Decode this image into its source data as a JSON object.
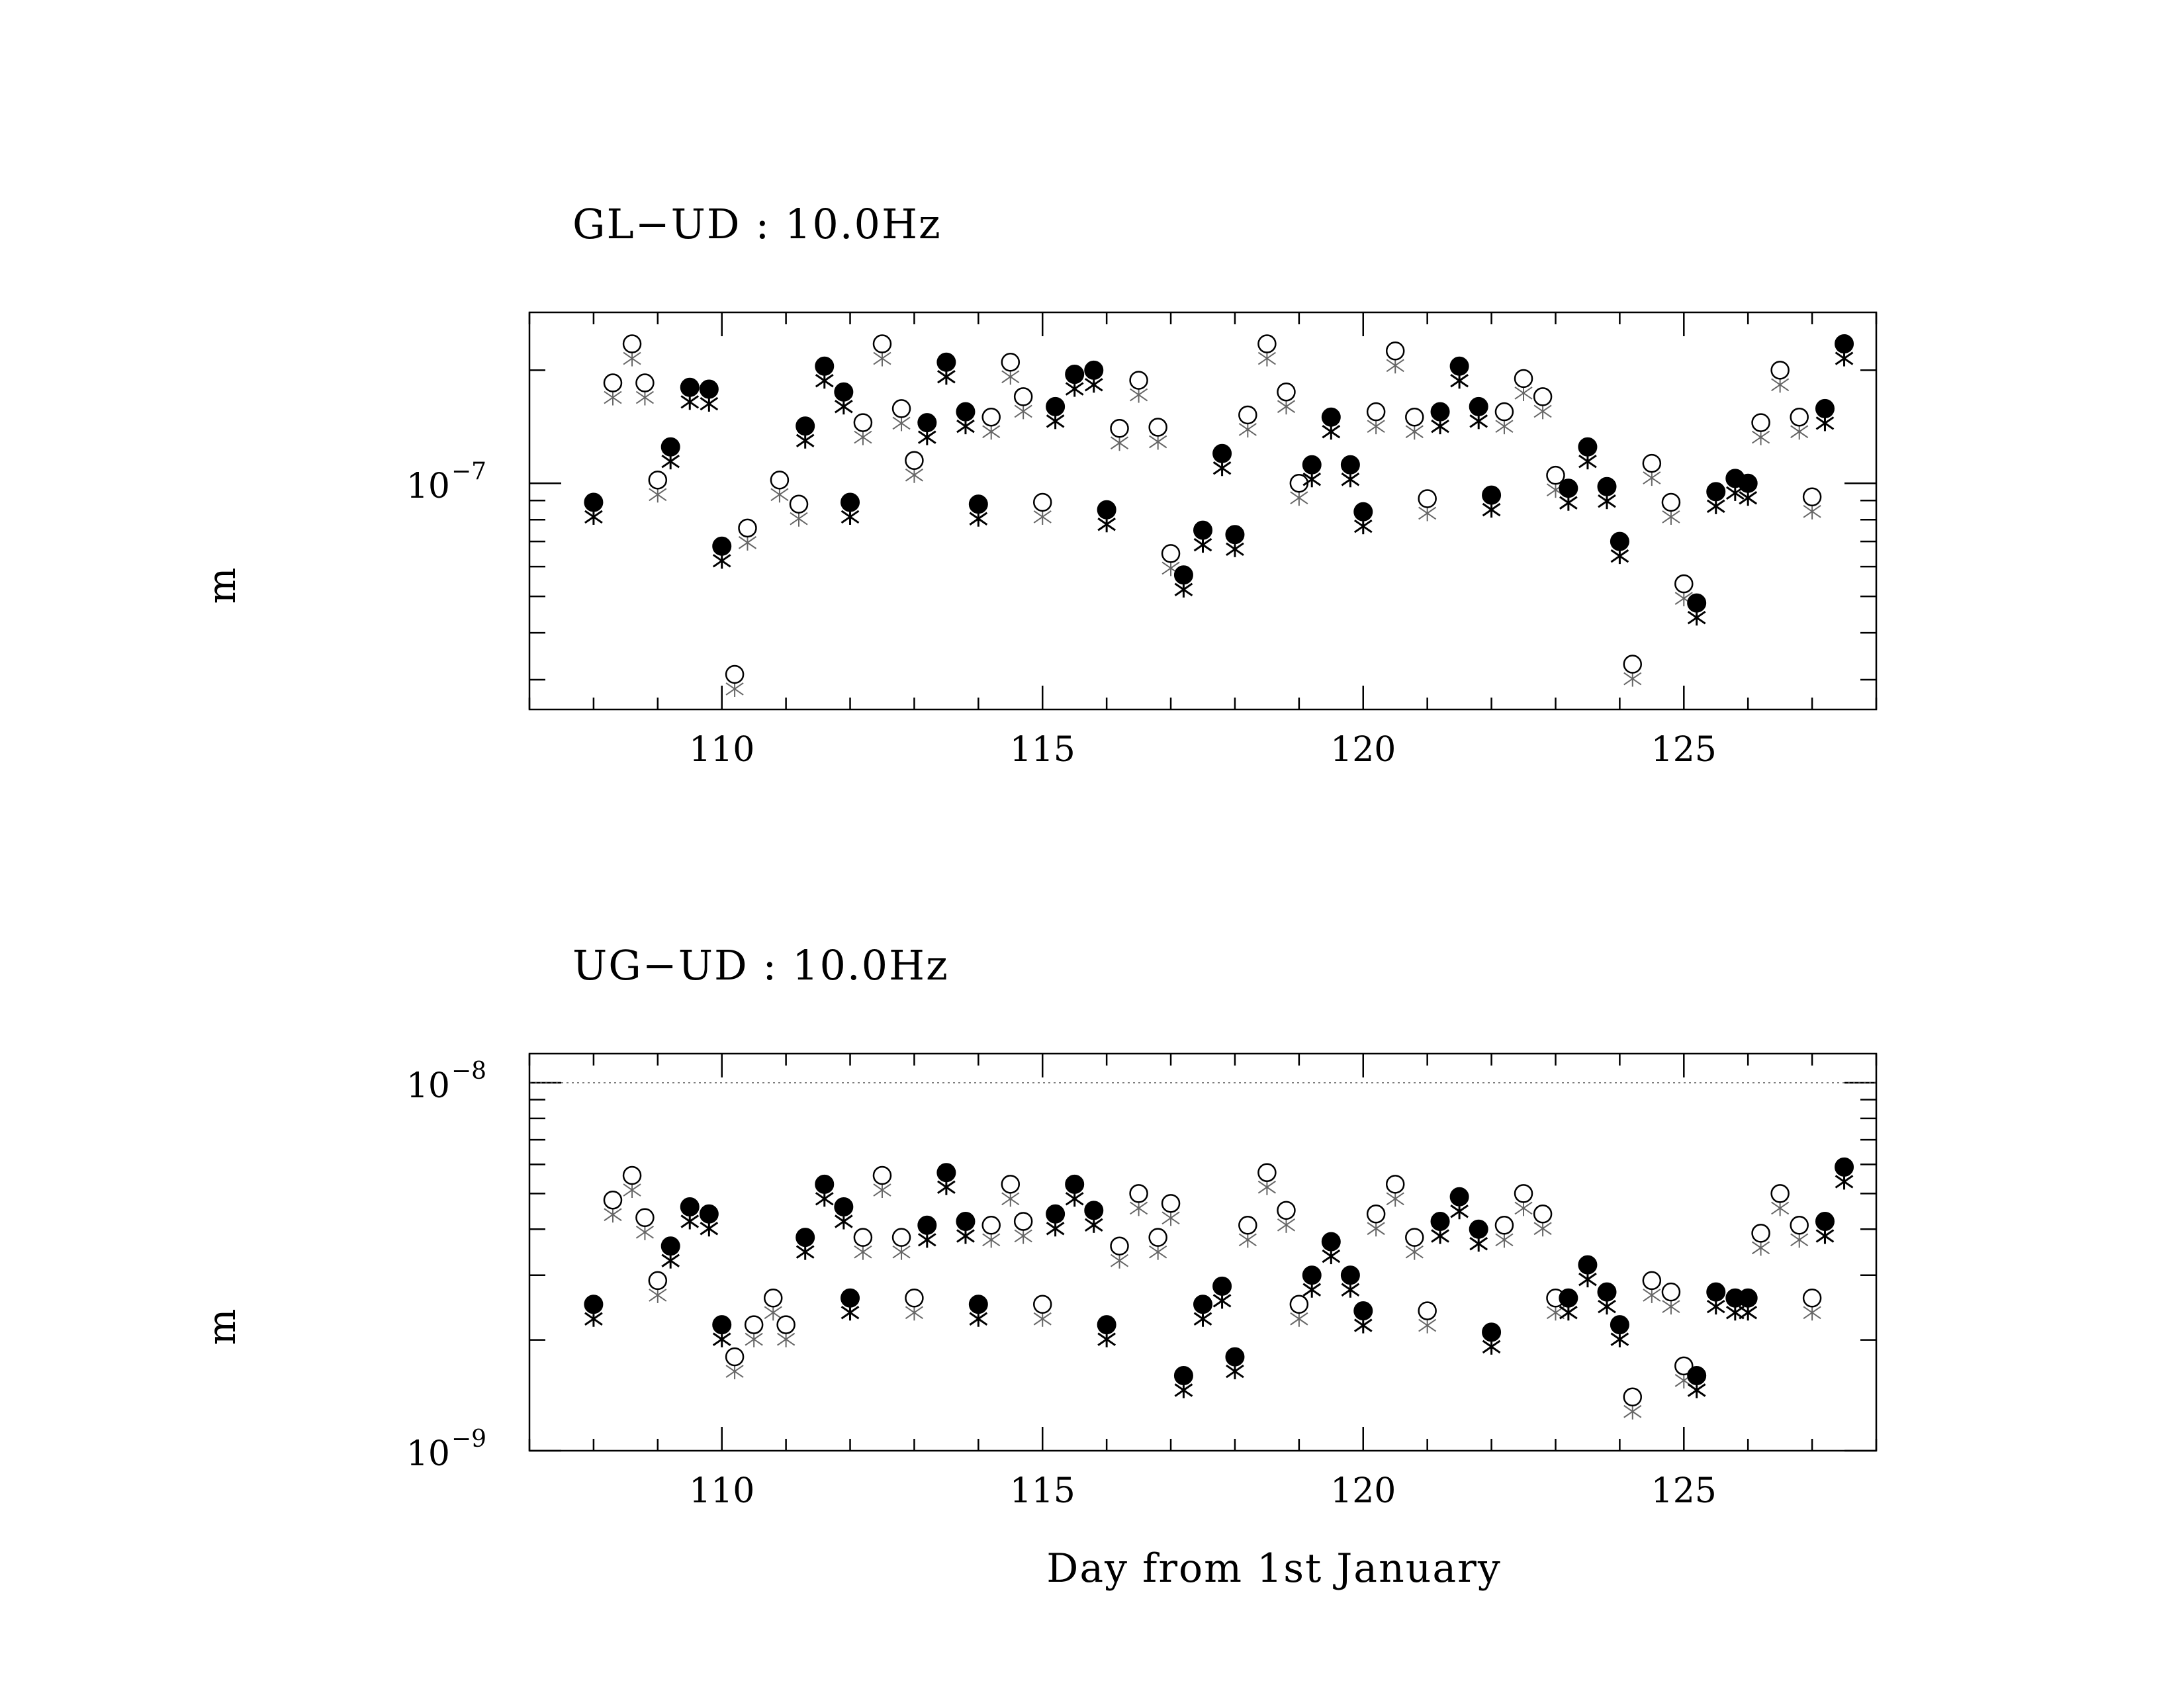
{
  "chart_data": [
    {
      "type": "scatter",
      "title": "GL−UD : 10.0Hz",
      "ylabel": "m",
      "xlabel": "",
      "xlim": [
        107,
        128
      ],
      "ylim": [
        2.5e-08,
        2.85e-07
      ],
      "yscale": "log",
      "xticks": [
        110,
        115,
        120,
        125
      ],
      "yticks": [
        {
          "base": "10",
          "exp": "−7",
          "value": 1e-07
        }
      ],
      "grid": false,
      "series": [
        {
          "marker": "open-circle",
          "points": [
            [
              108.6,
              2.35e-07
            ],
            [
              108.3,
              1.85e-07
            ],
            [
              108.8,
              1.85e-07
            ],
            [
              109.0,
              1.02e-07
            ],
            [
              110.2,
              3.1e-08
            ],
            [
              110.9,
              1.02e-07
            ],
            [
              111.2,
              8.8e-08
            ],
            [
              110.4,
              7.6e-08
            ],
            [
              112.2,
              1.45e-07
            ],
            [
              112.5,
              2.35e-07
            ],
            [
              112.8,
              1.58e-07
            ],
            [
              113.0,
              1.15e-07
            ],
            [
              114.2,
              1.5e-07
            ],
            [
              114.5,
              2.1e-07
            ],
            [
              114.7,
              1.7e-07
            ],
            [
              115.0,
              8.9e-08
            ],
            [
              116.2,
              1.4e-07
            ],
            [
              116.5,
              1.88e-07
            ],
            [
              116.8,
              1.41e-07
            ],
            [
              117.0,
              6.5e-08
            ],
            [
              118.2,
              1.52e-07
            ],
            [
              118.5,
              2.35e-07
            ],
            [
              118.8,
              1.75e-07
            ],
            [
              119.0,
              1e-07
            ],
            [
              120.2,
              1.55e-07
            ],
            [
              120.5,
              2.25e-07
            ],
            [
              120.8,
              1.5e-07
            ],
            [
              121.0,
              9.1e-08
            ],
            [
              122.2,
              1.55e-07
            ],
            [
              122.5,
              1.9e-07
            ],
            [
              122.8,
              1.7e-07
            ],
            [
              123.0,
              1.05e-07
            ],
            [
              124.2,
              3.3e-08
            ],
            [
              124.5,
              1.13e-07
            ],
            [
              124.8,
              8.9e-08
            ],
            [
              125.0,
              5.4e-08
            ],
            [
              126.2,
              1.45e-07
            ],
            [
              126.5,
              2e-07
            ],
            [
              126.8,
              1.5e-07
            ],
            [
              127.0,
              9.2e-08
            ]
          ]
        },
        {
          "marker": "filled-circle",
          "points": [
            [
              108.0,
              8.9e-08
            ],
            [
              109.2,
              1.25e-07
            ],
            [
              109.5,
              1.8e-07
            ],
            [
              109.8,
              1.78e-07
            ],
            [
              110.0,
              6.8e-08
            ],
            [
              111.3,
              1.42e-07
            ],
            [
              111.6,
              2.05e-07
            ],
            [
              111.9,
              1.75e-07
            ],
            [
              112.0,
              8.9e-08
            ],
            [
              113.2,
              1.45e-07
            ],
            [
              113.5,
              2.1e-07
            ],
            [
              113.8,
              1.55e-07
            ],
            [
              114.0,
              8.8e-08
            ],
            [
              115.2,
              1.6e-07
            ],
            [
              115.5,
              1.95e-07
            ],
            [
              115.8,
              2e-07
            ],
            [
              116.0,
              8.5e-08
            ],
            [
              117.2,
              5.7e-08
            ],
            [
              117.5,
              7.5e-08
            ],
            [
              117.8,
              1.2e-07
            ],
            [
              118.0,
              7.3e-08
            ],
            [
              119.2,
              1.12e-07
            ],
            [
              119.5,
              1.5e-07
            ],
            [
              119.8,
              1.12e-07
            ],
            [
              120.0,
              8.4e-08
            ],
            [
              121.2,
              1.55e-07
            ],
            [
              121.5,
              2.05e-07
            ],
            [
              121.8,
              1.6e-07
            ],
            [
              122.0,
              9.3e-08
            ],
            [
              123.2,
              9.7e-08
            ],
            [
              123.5,
              1.25e-07
            ],
            [
              123.8,
              9.8e-08
            ],
            [
              124.0,
              7e-08
            ],
            [
              125.2,
              4.8e-08
            ],
            [
              125.5,
              9.5e-08
            ],
            [
              125.8,
              1.03e-07
            ],
            [
              126.0,
              1e-07
            ],
            [
              127.2,
              1.58e-07
            ],
            [
              127.5,
              2.35e-07
            ]
          ]
        }
      ]
    },
    {
      "type": "scatter",
      "title": "UG−UD : 10.0Hz",
      "ylabel": "m",
      "xlabel": "Day from 1st January",
      "xlim": [
        107,
        128
      ],
      "ylim": [
        1e-09,
        1.2e-08
      ],
      "yscale": "log",
      "xticks": [
        110,
        115,
        120,
        125
      ],
      "yticks": [
        {
          "base": "10",
          "exp": "−8",
          "value": 1e-08
        },
        {
          "base": "10",
          "exp": "−9",
          "value": 1e-09
        }
      ],
      "grid": false,
      "series": [
        {
          "marker": "open-circle",
          "points": [
            [
              108.3,
              4.8e-09
            ],
            [
              108.6,
              5.6e-09
            ],
            [
              108.8,
              4.3e-09
            ],
            [
              109.0,
              2.9e-09
            ],
            [
              110.2,
              1.8e-09
            ],
            [
              110.5,
              2.2e-09
            ],
            [
              110.8,
              2.6e-09
            ],
            [
              111.0,
              2.2e-09
            ],
            [
              112.2,
              3.8e-09
            ],
            [
              112.5,
              5.6e-09
            ],
            [
              112.8,
              3.8e-09
            ],
            [
              113.0,
              2.6e-09
            ],
            [
              114.2,
              4.1e-09
            ],
            [
              114.5,
              5.3e-09
            ],
            [
              114.7,
              4.2e-09
            ],
            [
              115.0,
              2.5e-09
            ],
            [
              116.2,
              3.6e-09
            ],
            [
              116.5,
              5e-09
            ],
            [
              116.8,
              3.8e-09
            ],
            [
              117.0,
              4.7e-09
            ],
            [
              118.2,
              4.1e-09
            ],
            [
              118.5,
              5.7e-09
            ],
            [
              118.8,
              4.5e-09
            ],
            [
              119.0,
              2.5e-09
            ],
            [
              120.2,
              4.4e-09
            ],
            [
              120.5,
              5.3e-09
            ],
            [
              120.8,
              3.8e-09
            ],
            [
              121.0,
              2.4e-09
            ],
            [
              122.2,
              4.1e-09
            ],
            [
              122.5,
              5e-09
            ],
            [
              122.8,
              4.4e-09
            ],
            [
              123.0,
              2.6e-09
            ],
            [
              124.2,
              1.4e-09
            ],
            [
              124.5,
              2.9e-09
            ],
            [
              124.8,
              2.7e-09
            ],
            [
              125.0,
              1.7e-09
            ],
            [
              126.2,
              3.9e-09
            ],
            [
              126.5,
              5e-09
            ],
            [
              126.8,
              4.1e-09
            ],
            [
              127.0,
              2.6e-09
            ]
          ]
        },
        {
          "marker": "filled-circle",
          "points": [
            [
              108.0,
              2.5e-09
            ],
            [
              109.2,
              3.6e-09
            ],
            [
              109.5,
              4.6e-09
            ],
            [
              109.8,
              4.4e-09
            ],
            [
              110.0,
              2.2e-09
            ],
            [
              111.3,
              3.8e-09
            ],
            [
              111.6,
              5.3e-09
            ],
            [
              111.9,
              4.6e-09
            ],
            [
              112.0,
              2.6e-09
            ],
            [
              113.2,
              4.1e-09
            ],
            [
              113.5,
              5.7e-09
            ],
            [
              113.8,
              4.2e-09
            ],
            [
              114.0,
              2.5e-09
            ],
            [
              115.2,
              4.4e-09
            ],
            [
              115.5,
              5.3e-09
            ],
            [
              115.8,
              4.5e-09
            ],
            [
              116.0,
              2.2e-09
            ],
            [
              117.2,
              1.6e-09
            ],
            [
              117.5,
              2.5e-09
            ],
            [
              117.8,
              2.8e-09
            ],
            [
              118.0,
              1.8e-09
            ],
            [
              119.2,
              3e-09
            ],
            [
              119.5,
              3.7e-09
            ],
            [
              119.8,
              3e-09
            ],
            [
              120.0,
              2.4e-09
            ],
            [
              121.2,
              4.2e-09
            ],
            [
              121.5,
              4.9e-09
            ],
            [
              121.8,
              4e-09
            ],
            [
              122.0,
              2.1e-09
            ],
            [
              123.2,
              2.6e-09
            ],
            [
              123.5,
              3.2e-09
            ],
            [
              123.8,
              2.7e-09
            ],
            [
              124.0,
              2.2e-09
            ],
            [
              125.2,
              1.6e-09
            ],
            [
              125.5,
              2.7e-09
            ],
            [
              125.8,
              2.6e-09
            ],
            [
              126.0,
              2.6e-09
            ],
            [
              127.2,
              4.2e-09
            ],
            [
              127.5,
              5.9e-09
            ]
          ]
        }
      ]
    }
  ]
}
